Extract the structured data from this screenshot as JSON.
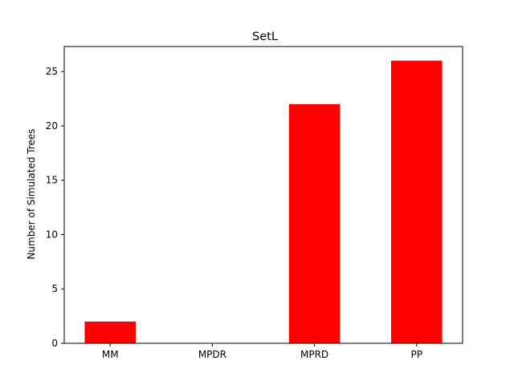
{
  "chart_data": {
    "type": "bar",
    "title": "SetL",
    "xlabel": "",
    "ylabel": "Number of Simulated Trees",
    "categories": [
      "MM",
      "MPDR",
      "MPRD",
      "PP"
    ],
    "values": [
      2,
      0,
      22,
      26
    ],
    "ylim": [
      0,
      27.3
    ],
    "yticks": [
      0,
      5,
      10,
      15,
      20,
      25
    ],
    "bar_color": "#ff0000",
    "grid": false,
    "legend": "none"
  }
}
